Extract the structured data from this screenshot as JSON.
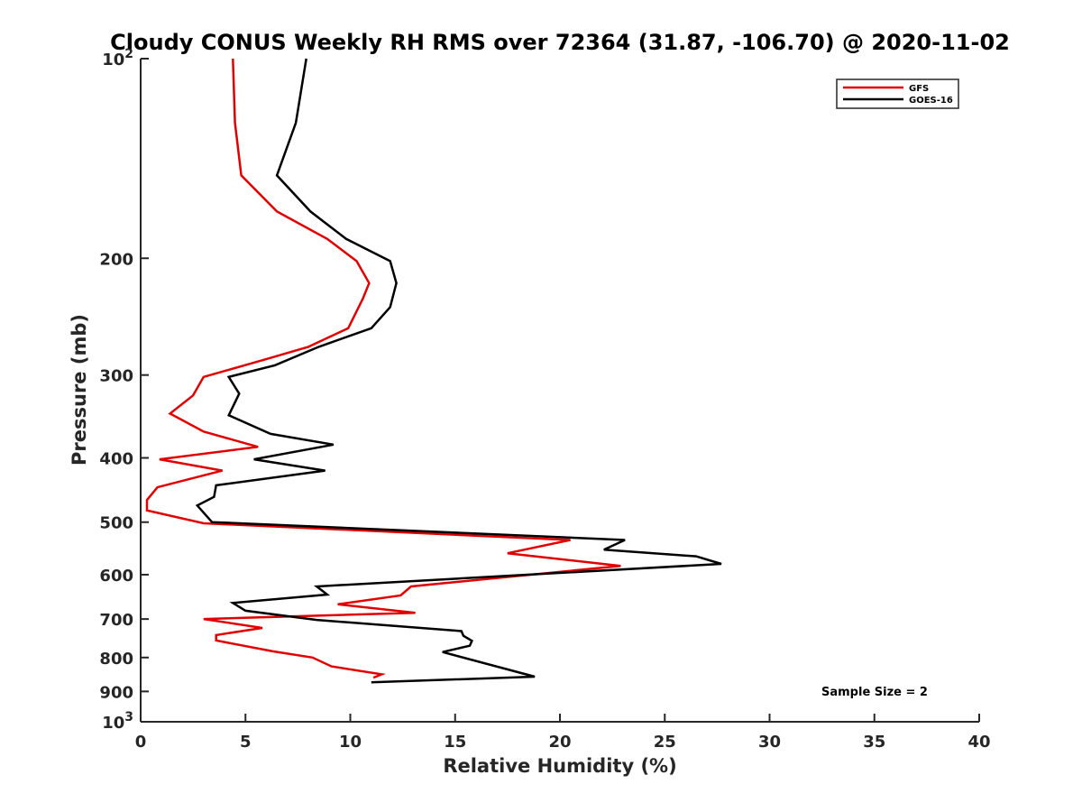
{
  "chart_data": {
    "type": "line",
    "title": "Cloudy CONUS Weekly RH RMS over 72364 (31.87, -106.70) @ 2020-11-02",
    "xlabel": "Relative Humidity (%)",
    "ylabel": "Pressure (mb)",
    "xlim": [
      0,
      40
    ],
    "ylim": [
      100,
      1000
    ],
    "y_scale": "log",
    "y_reversed": true,
    "x_ticks": [
      0,
      5,
      10,
      15,
      20,
      25,
      30,
      35,
      40
    ],
    "x_tick_labels": [
      "0",
      "5",
      "10",
      "15",
      "20",
      "25",
      "30",
      "35",
      "40"
    ],
    "y_ticks": [
      100,
      200,
      300,
      400,
      500,
      600,
      700,
      800,
      900,
      1000
    ],
    "y_tick_labels": [
      {
        "base": "10",
        "exp": "2"
      },
      {
        "base": "200",
        "exp": ""
      },
      {
        "base": "300",
        "exp": ""
      },
      {
        "base": "400",
        "exp": ""
      },
      {
        "base": "500",
        "exp": ""
      },
      {
        "base": "600",
        "exp": ""
      },
      {
        "base": "700",
        "exp": ""
      },
      {
        "base": "800",
        "exp": ""
      },
      {
        "base": "900",
        "exp": ""
      },
      {
        "base": "10",
        "exp": "3"
      }
    ],
    "grid": false,
    "legend_position": "top-right",
    "annotation": "Sample Size = 2",
    "series": [
      {
        "name": "GFS",
        "color": "#e00000",
        "points": [
          [
            4.4,
            100
          ],
          [
            4.5,
            125
          ],
          [
            4.8,
            150
          ],
          [
            6.5,
            170
          ],
          [
            8.9,
            187
          ],
          [
            10.3,
            202
          ],
          [
            10.9,
            218
          ],
          [
            10.6,
            230
          ],
          [
            9.9,
            255
          ],
          [
            8.0,
            272
          ],
          [
            5.8,
            285
          ],
          [
            3.0,
            302
          ],
          [
            2.5,
            322
          ],
          [
            1.4,
            343
          ],
          [
            3.0,
            365
          ],
          [
            5.6,
            385
          ],
          [
            0.9,
            402
          ],
          [
            3.9,
            418
          ],
          [
            0.8,
            443
          ],
          [
            0.3,
            463
          ],
          [
            0.3,
            480
          ],
          [
            3.0,
            502
          ],
          [
            20.5,
            532
          ],
          [
            17.5,
            557
          ],
          [
            22.9,
            582
          ],
          [
            12.9,
            625
          ],
          [
            12.4,
            645
          ],
          [
            9.4,
            665
          ],
          [
            13.1,
            685
          ],
          [
            3.0,
            700
          ],
          [
            5.8,
            722
          ],
          [
            3.6,
            740
          ],
          [
            3.6,
            754
          ],
          [
            6.3,
            783
          ],
          [
            8.2,
            800
          ],
          [
            9.1,
            825
          ],
          [
            11.5,
            848
          ],
          [
            11.1,
            858
          ]
        ]
      },
      {
        "name": "GOES-16",
        "color": "#000000",
        "points": [
          [
            7.9,
            100
          ],
          [
            7.4,
            125
          ],
          [
            6.5,
            150
          ],
          [
            8.1,
            170
          ],
          [
            9.8,
            187
          ],
          [
            11.9,
            202
          ],
          [
            12.2,
            218
          ],
          [
            11.9,
            237
          ],
          [
            11.0,
            255
          ],
          [
            8.5,
            272
          ],
          [
            6.4,
            290
          ],
          [
            4.2,
            302
          ],
          [
            4.7,
            320
          ],
          [
            4.2,
            345
          ],
          [
            6.2,
            368
          ],
          [
            9.2,
            382
          ],
          [
            5.4,
            402
          ],
          [
            8.8,
            418
          ],
          [
            3.6,
            440
          ],
          [
            3.5,
            458
          ],
          [
            2.7,
            472
          ],
          [
            3.4,
            500
          ],
          [
            23.1,
            532
          ],
          [
            22.1,
            550
          ],
          [
            26.5,
            563
          ],
          [
            27.7,
            578
          ],
          [
            8.4,
            625
          ],
          [
            8.9,
            643
          ],
          [
            4.4,
            662
          ],
          [
            5.0,
            680
          ],
          [
            8.4,
            702
          ],
          [
            15.3,
            730
          ],
          [
            15.4,
            742
          ],
          [
            15.8,
            755
          ],
          [
            15.7,
            768
          ],
          [
            14.4,
            785
          ],
          [
            18.8,
            855
          ],
          [
            11.0,
            872
          ]
        ]
      }
    ]
  }
}
